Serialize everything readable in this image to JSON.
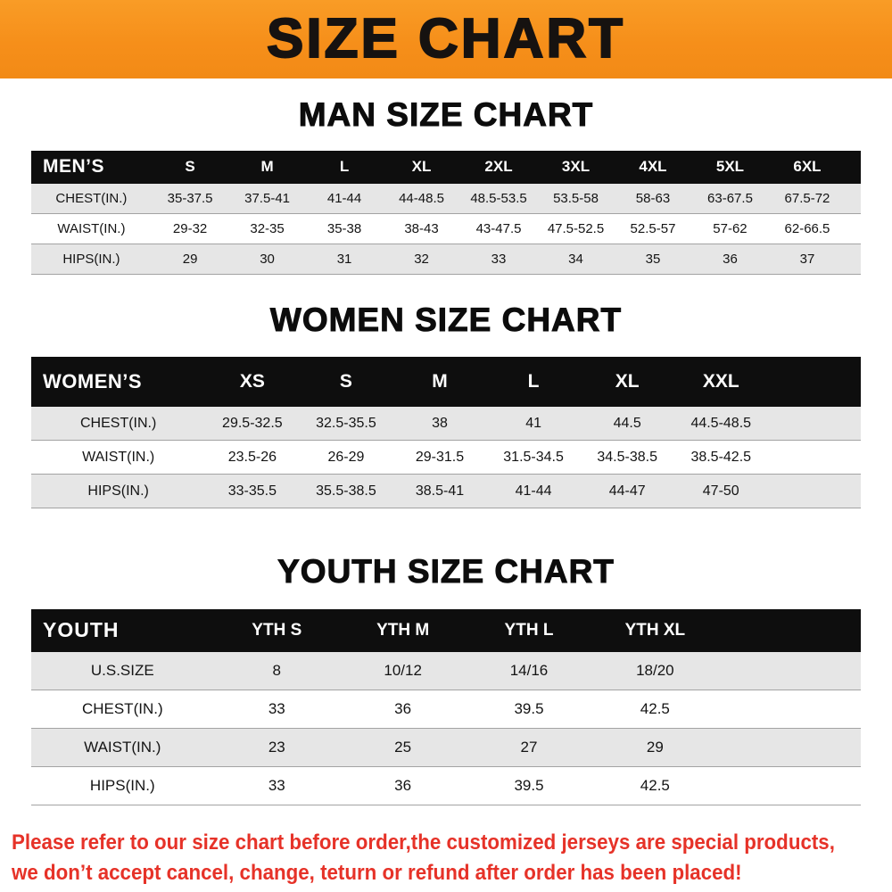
{
  "banner": {
    "title": "SIZE CHART"
  },
  "sections": [
    {
      "heading": "MAN SIZE CHART"
    },
    {
      "heading": "WOMEN SIZE CHART"
    },
    {
      "heading": "YOUTH SIZE CHART"
    }
  ],
  "chart_data": [
    {
      "type": "table",
      "title": "MAN SIZE CHART",
      "row_header": "MEN’S",
      "columns": [
        "S",
        "M",
        "L",
        "XL",
        "2XL",
        "3XL",
        "4XL",
        "5XL",
        "6XL"
      ],
      "rows": [
        {
          "label": "CHEST(IN.)",
          "values": [
            "35-37.5",
            "37.5-41",
            "41-44",
            "44-48.5",
            "48.5-53.5",
            "53.5-58",
            "58-63",
            "63-67.5",
            "67.5-72"
          ]
        },
        {
          "label": "WAIST(IN.)",
          "values": [
            "29-32",
            "32-35",
            "35-38",
            "38-43",
            "43-47.5",
            "47.5-52.5",
            "52.5-57",
            "57-62",
            "62-66.5"
          ]
        },
        {
          "label": "HIPS(IN.)",
          "values": [
            "29",
            "30",
            "31",
            "32",
            "33",
            "34",
            "35",
            "36",
            "37"
          ]
        }
      ]
    },
    {
      "type": "table",
      "title": "WOMEN SIZE CHART",
      "row_header": "WOMEN’S",
      "columns": [
        "XS",
        "S",
        "M",
        "L",
        "XL",
        "XXL"
      ],
      "rows": [
        {
          "label": "CHEST(IN.)",
          "values": [
            "29.5-32.5",
            "32.5-35.5",
            "38",
            "41",
            "44.5",
            "44.5-48.5"
          ]
        },
        {
          "label": "WAIST(IN.)",
          "values": [
            "23.5-26",
            "26-29",
            "29-31.5",
            "31.5-34.5",
            "34.5-38.5",
            "38.5-42.5"
          ]
        },
        {
          "label": "HIPS(IN.)",
          "values": [
            "33-35.5",
            "35.5-38.5",
            "38.5-41",
            "41-44",
            "44-47",
            "47-50"
          ]
        }
      ]
    },
    {
      "type": "table",
      "title": "YOUTH SIZE CHART",
      "row_header": "YOUTH",
      "columns": [
        "YTH S",
        "YTH M",
        "YTH L",
        "YTH XL"
      ],
      "rows": [
        {
          "label": "U.S.SIZE",
          "values": [
            "8",
            "10/12",
            "14/16",
            "18/20"
          ]
        },
        {
          "label": "CHEST(IN.)",
          "values": [
            "33",
            "36",
            "39.5",
            "42.5"
          ]
        },
        {
          "label": "WAIST(IN.)",
          "values": [
            "23",
            "25",
            "27",
            "29"
          ]
        },
        {
          "label": "HIPS(IN.)",
          "values": [
            "33",
            "36",
            "39.5",
            "42.5"
          ]
        }
      ]
    }
  ],
  "footer": {
    "line1": "Please refer to our size chart before order,the customized jerseys are special products,",
    "line2": "we don’t accept cancel, change, teturn or refund after order has been placed!"
  },
  "colors": {
    "banner_orange": "#f68f1a",
    "header_black": "#0e0e0e",
    "row_shade_gray": "#e6e6e6",
    "divider_gray": "#a3a3a3",
    "footer_red": "#e63228"
  }
}
